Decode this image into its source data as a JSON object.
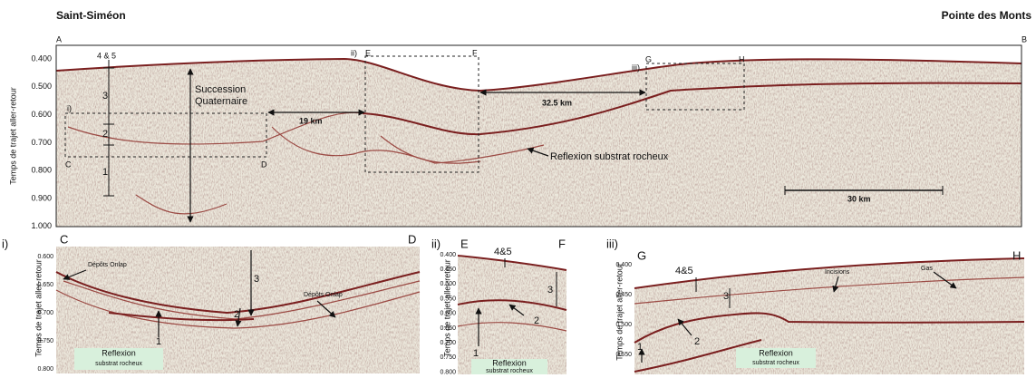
{
  "header": {
    "left": "Saint-Siméon",
    "right": "Pointe des Monts"
  },
  "main": {
    "corner_left": "A",
    "corner_right": "B",
    "y_label": "Temps de trajet aller-retour",
    "y_ticks": [
      "0.400",
      "0.500",
      "0.600",
      "0.700",
      "0.800",
      "0.900",
      "1.000"
    ],
    "units": [
      "4 & 5",
      "3",
      "2",
      "1"
    ],
    "succession": [
      "Succession",
      "Quaternaire"
    ],
    "distances": [
      "19 km",
      "32.5 km"
    ],
    "reflector": "Reflexion substrat rocheux",
    "scale": "30 km",
    "boxes": [
      {
        "label": "i)",
        "corners": [
          "C",
          "D"
        ]
      },
      {
        "label": "ii)",
        "corners": [
          "E",
          "F"
        ]
      },
      {
        "label": "iii)",
        "corners": [
          "G",
          "H"
        ]
      }
    ]
  },
  "panels": [
    {
      "label": "i)",
      "corners": [
        "C",
        "D"
      ],
      "y_label": "Temps de trajet aller-retour",
      "y_ticks": [
        "0.600",
        "0.650",
        "0.700",
        "0.750",
        "0.800"
      ],
      "annotations": [
        "Dépôts Onlap",
        "Dépôts Onlap",
        "3",
        "2",
        "1"
      ],
      "reflector": [
        "Reflexion",
        "substrat rocheux"
      ]
    },
    {
      "label": "ii)",
      "corners": [
        "E",
        "F"
      ],
      "y_label": "Temps de trajet aller-retour",
      "y_ticks": [
        "0.400",
        "0.450",
        "0.500",
        "0.550",
        "0.600",
        "0.650",
        "0.700",
        "0.750",
        "0.800"
      ],
      "annotations": [
        "4&5",
        "3",
        "2",
        "1"
      ],
      "reflector": [
        "Reflexion",
        "substrat rocheux"
      ]
    },
    {
      "label": "iii)",
      "corners": [
        "G",
        "H"
      ],
      "y_label": "Temps de trajet aller-retour",
      "y_ticks": [
        "0.400",
        "0.450",
        "0.500",
        "0.550"
      ],
      "annotations": [
        "Incisions",
        "Gas",
        "4&5",
        "3",
        "2",
        "1"
      ],
      "reflector": [
        "Reflexion",
        "substrat rocheux"
      ]
    }
  ]
}
